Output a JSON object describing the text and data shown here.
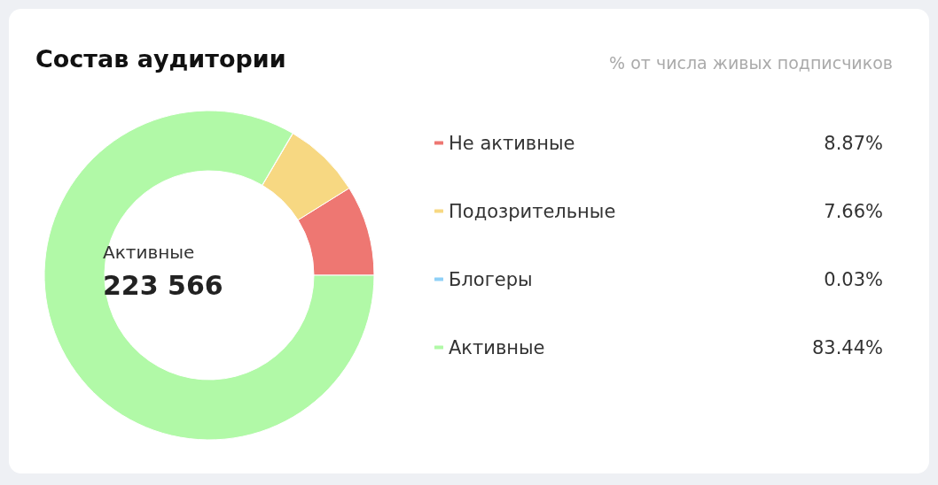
{
  "chart_data": {
    "type": "donut",
    "title": "Состав аудитории",
    "subtitle": "% от числа живых подписчиков",
    "categories": [
      "Не активные",
      "Подозрительные",
      "Блогеры",
      "Активные"
    ],
    "values": [
      8.87,
      7.66,
      0.03,
      83.44
    ],
    "colors": [
      "#ee7772",
      "#f7d882",
      "#8fd0f7",
      "#b1f9a7"
    ],
    "value_labels": [
      "8.87%",
      "7.66%",
      "0.03%",
      "83.44%"
    ],
    "legend": "right",
    "annotations": [
      "Активные",
      "223 566"
    ]
  }
}
